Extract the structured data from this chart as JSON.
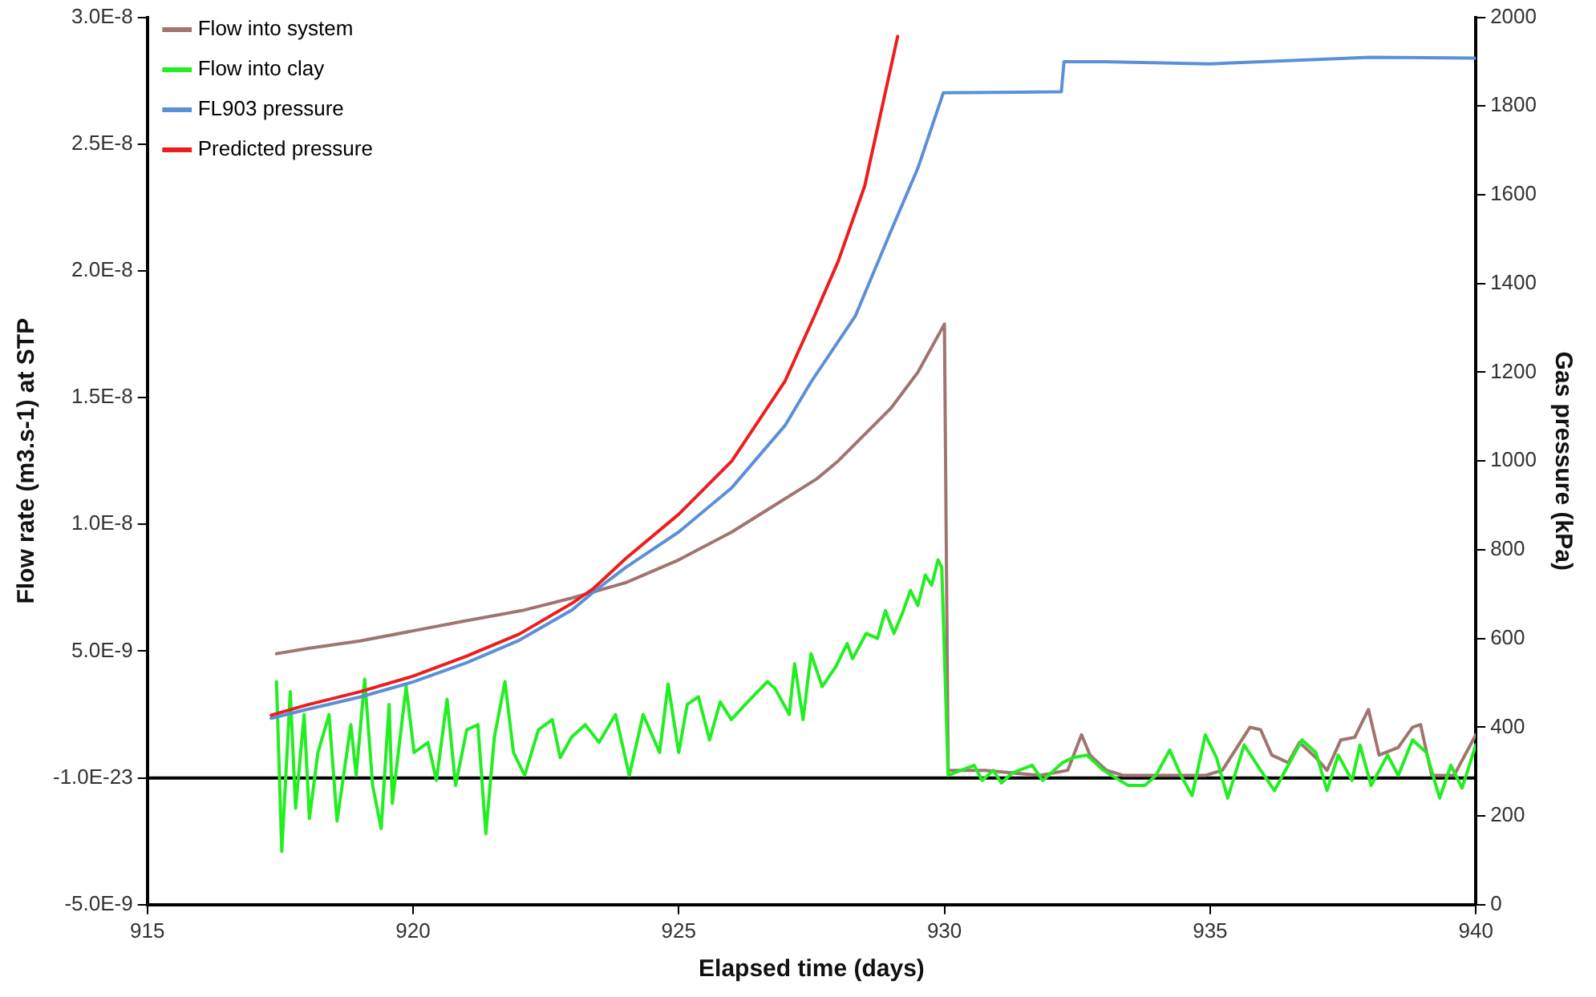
{
  "chart_data": {
    "type": "line",
    "xlabel": "Elapsed time (days)",
    "ylabel": "Flow rate (m3.s-1) at STP",
    "y2label": "Gas pressure (kPa)",
    "xlim": [
      915,
      940
    ],
    "xticks": [
      915,
      920,
      925,
      930,
      935,
      940
    ],
    "ylim": [
      -5e-09,
      3e-08
    ],
    "yticks": [
      {
        "value": -5e-09,
        "label": "-5.0E-9"
      },
      {
        "value": 0,
        "label": "-1.0E-23"
      },
      {
        "value": 5e-09,
        "label": "5.0E-9"
      },
      {
        "value": 1e-08,
        "label": "1.0E-8"
      },
      {
        "value": 1.5e-08,
        "label": "1.5E-8"
      },
      {
        "value": 2e-08,
        "label": "2.0E-8"
      },
      {
        "value": 2.5e-08,
        "label": "2.5E-8"
      },
      {
        "value": 3e-08,
        "label": "3.0E-8"
      }
    ],
    "y2lim": [
      0,
      2000
    ],
    "y2ticks": [
      0,
      200,
      400,
      600,
      800,
      1000,
      1200,
      1400,
      1600,
      1800,
      2000
    ],
    "grid": false,
    "legend": "top left",
    "marker": "none",
    "line_style": "solid",
    "ref_lines": [
      {
        "axis": "y",
        "value": 0,
        "color": "#000000"
      }
    ],
    "series": [
      {
        "name": "Flow into system",
        "color": "#a07470",
        "axis": "y",
        "x": [
          917.43,
          918,
          919,
          920,
          921,
          922.05,
          923,
          924,
          925,
          926,
          926.61,
          927.6,
          928,
          929,
          929.5,
          930,
          930.07,
          930.76,
          931.8,
          932.32,
          932.58,
          932.74,
          933.05,
          933.36,
          934.4,
          934.91,
          935.23,
          935.75,
          935.95,
          936.16,
          936.47,
          936.68,
          936.99,
          937.2,
          937.46,
          937.72,
          937.98,
          938.18,
          938.54,
          938.81,
          938.96,
          939.17,
          939.59,
          940
        ],
        "values": [
          4.9e-09,
          5.1e-09,
          5.4e-09,
          5.8e-09,
          6.2e-09,
          6.6e-09,
          7.1e-09,
          7.7e-09,
          8.6e-09,
          9.7e-09,
          1.05e-08,
          1.18e-08,
          1.25e-08,
          1.46e-08,
          1.6e-08,
          1.79e-08,
          3e-10,
          3e-10,
          1e-10,
          3e-10,
          1.7e-09,
          9e-10,
          3e-10,
          1e-10,
          1e-10,
          1e-10,
          3e-10,
          2e-09,
          1.9e-09,
          9e-10,
          6e-10,
          1.4e-09,
          8e-10,
          3e-10,
          1.5e-09,
          1.6e-09,
          2.7e-09,
          9e-10,
          1.2e-09,
          2e-09,
          2.1e-09,
          1e-10,
          1e-10,
          1.7e-09
        ]
      },
      {
        "name": "Flow into clay",
        "color": "#22ee22",
        "axis": "y",
        "x": [
          917.43,
          917.53,
          917.69,
          917.79,
          917.95,
          918.05,
          918.21,
          918.42,
          918.57,
          918.83,
          918.93,
          919.09,
          919.24,
          919.4,
          919.55,
          919.61,
          919.87,
          920.02,
          920.28,
          920.44,
          920.64,
          920.8,
          921.01,
          921.22,
          921.37,
          921.53,
          921.73,
          921.89,
          922.1,
          922.36,
          922.62,
          922.77,
          922.98,
          923.24,
          923.5,
          923.81,
          924.07,
          924.33,
          924.64,
          924.8,
          925,
          925.16,
          925.37,
          925.58,
          925.78,
          925.99,
          926.3,
          926.67,
          926.82,
          927.08,
          927.18,
          927.34,
          927.49,
          927.7,
          927.96,
          928.17,
          928.27,
          928.53,
          928.74,
          928.89,
          929.05,
          929.21,
          929.36,
          929.5,
          929.64,
          929.76,
          929.88,
          929.95,
          930.07,
          930.56,
          930.71,
          930.92,
          931.07,
          931.28,
          931.65,
          931.85,
          932.22,
          932.42,
          932.68,
          932.99,
          933.46,
          933.77,
          933.98,
          934.24,
          934.45,
          934.66,
          934.91,
          935.12,
          935.33,
          935.64,
          935.95,
          936.21,
          936.47,
          936.73,
          936.99,
          937.2,
          937.41,
          937.67,
          937.82,
          938.03,
          938.34,
          938.54,
          938.81,
          939.07,
          939.32,
          939.53,
          939.74,
          940
        ],
        "values": [
          3.8e-09,
          -2.9e-09,
          3.4e-09,
          -1.2e-09,
          2.5e-09,
          -1.6e-09,
          1e-09,
          2.5e-09,
          -1.7e-09,
          2.1e-09,
          1e-10,
          3.9e-09,
          -3e-10,
          -2e-09,
          2.9e-09,
          -1e-09,
          3.6e-09,
          1e-09,
          1.4e-09,
          -1e-10,
          3.1e-09,
          -3e-10,
          1.9e-09,
          2.1e-09,
          -2.2e-09,
          1.6e-09,
          3.8e-09,
          1e-09,
          1e-10,
          1.9e-09,
          2.3e-09,
          8e-10,
          1.6e-09,
          2.1e-09,
          1.4e-09,
          2.5e-09,
          1e-10,
          2.5e-09,
          1e-09,
          3.7e-09,
          1e-09,
          2.9e-09,
          3.2e-09,
          1.5e-09,
          3e-09,
          2.3e-09,
          3e-09,
          3.8e-09,
          3.5e-09,
          2.5e-09,
          4.5e-09,
          2.3e-09,
          4.9e-09,
          3.6e-09,
          4.4e-09,
          5.3e-09,
          4.7e-09,
          5.7e-09,
          5.5e-09,
          6.6e-09,
          5.7e-09,
          6.5e-09,
          7.4e-09,
          6.8e-09,
          8e-09,
          7.6e-09,
          8.6e-09,
          8.3e-09,
          1e-10,
          5e-10,
          -1e-10,
          3e-10,
          -2e-10,
          2e-10,
          5e-10,
          -1e-10,
          6e-10,
          8e-10,
          9e-10,
          3e-10,
          -3e-10,
          -3e-10,
          1e-10,
          1.1e-09,
          1e-10,
          -7e-10,
          1.7e-09,
          8e-10,
          -8e-10,
          1.3e-09,
          3e-10,
          -5e-10,
          5e-10,
          1.5e-09,
          1e-09,
          -5e-10,
          9e-10,
          -1e-10,
          1.3e-09,
          -3e-10,
          9e-10,
          1e-10,
          1.5e-09,
          1e-09,
          -8e-10,
          5e-10,
          -4e-10,
          1.3e-09
        ]
      },
      {
        "name": "FL903 pressure",
        "color": "#5b8fd8",
        "axis": "y2",
        "x": [
          917.33,
          918,
          919,
          920,
          921,
          922,
          923,
          923.4,
          924,
          925,
          926,
          927,
          927.5,
          928.32,
          929,
          929.5,
          929.98,
          932.2,
          932.25,
          933,
          935,
          937,
          938,
          940
        ],
        "values": [
          420,
          440,
          468,
          502,
          545,
          596,
          665,
          705,
          760,
          840,
          940,
          1080,
          1180,
          1326,
          1520,
          1660,
          1830,
          1832,
          1900,
          1900,
          1895,
          1905,
          1910,
          1908
        ]
      },
      {
        "name": "Predicted pressure",
        "color": "#ee1c1c",
        "axis": "y2",
        "x": [
          917.33,
          918,
          919,
          920,
          921,
          922,
          923,
          923.4,
          924,
          925,
          926,
          927,
          927.55,
          928,
          928.5,
          929.12
        ],
        "values": [
          427,
          450,
          480,
          515,
          560,
          610,
          680,
          713,
          780,
          880,
          1000,
          1180,
          1326,
          1450,
          1620,
          1957
        ]
      }
    ]
  }
}
